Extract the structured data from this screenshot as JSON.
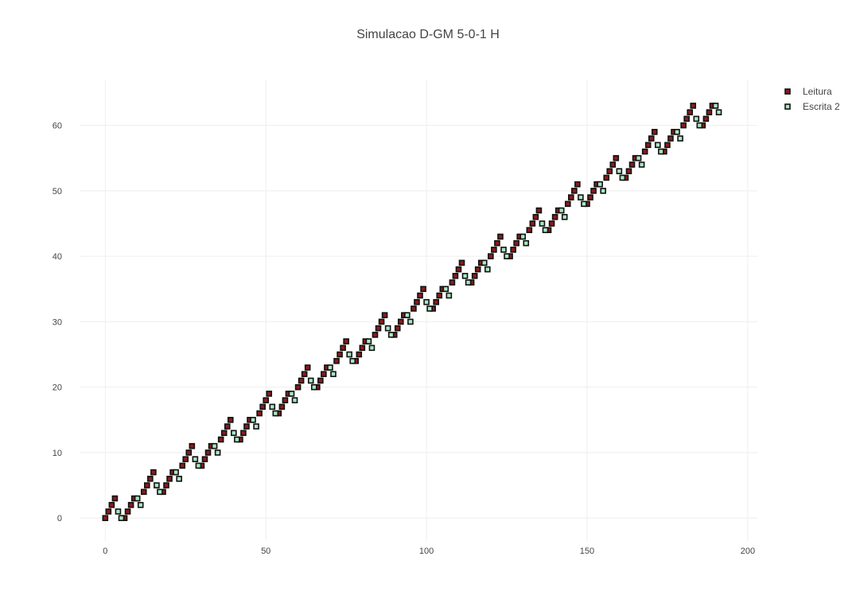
{
  "chart_data": {
    "type": "scatter",
    "title": "Simulacao D-GM 5-0-1 H",
    "xlabel": "",
    "ylabel": "",
    "xlim": [
      -8,
      203
    ],
    "ylim": [
      -3.5,
      67
    ],
    "x_ticks": [
      0,
      50,
      100,
      150,
      200
    ],
    "y_ticks": [
      0,
      10,
      20,
      30,
      40,
      50,
      60
    ],
    "grid": true,
    "legend_position": "top-right",
    "series": [
      {
        "name": "Leitura",
        "color": "#8b1a1a",
        "marker": "square-filled",
        "points": [
          [
            0,
            0
          ],
          [
            1,
            1
          ],
          [
            2,
            2
          ],
          [
            3,
            3
          ],
          [
            6,
            0
          ],
          [
            7,
            1
          ],
          [
            8,
            2
          ],
          [
            9,
            3
          ],
          [
            12,
            4
          ],
          [
            13,
            5
          ],
          [
            14,
            6
          ],
          [
            15,
            7
          ],
          [
            18,
            4
          ],
          [
            19,
            5
          ],
          [
            20,
            6
          ],
          [
            21,
            7
          ],
          [
            24,
            8
          ],
          [
            25,
            9
          ],
          [
            26,
            10
          ],
          [
            27,
            11
          ],
          [
            30,
            8
          ],
          [
            31,
            9
          ],
          [
            32,
            10
          ],
          [
            33,
            11
          ],
          [
            36,
            12
          ],
          [
            37,
            13
          ],
          [
            38,
            14
          ],
          [
            39,
            15
          ],
          [
            42,
            12
          ],
          [
            43,
            13
          ],
          [
            44,
            14
          ],
          [
            45,
            15
          ],
          [
            48,
            16
          ],
          [
            49,
            17
          ],
          [
            50,
            18
          ],
          [
            51,
            19
          ],
          [
            54,
            16
          ],
          [
            55,
            17
          ],
          [
            56,
            18
          ],
          [
            57,
            19
          ],
          [
            60,
            20
          ],
          [
            61,
            21
          ],
          [
            62,
            22
          ],
          [
            63,
            23
          ],
          [
            66,
            20
          ],
          [
            67,
            21
          ],
          [
            68,
            22
          ],
          [
            69,
            23
          ],
          [
            72,
            24
          ],
          [
            73,
            25
          ],
          [
            74,
            26
          ],
          [
            75,
            27
          ],
          [
            78,
            24
          ],
          [
            79,
            25
          ],
          [
            80,
            26
          ],
          [
            81,
            27
          ],
          [
            84,
            28
          ],
          [
            85,
            29
          ],
          [
            86,
            30
          ],
          [
            87,
            31
          ],
          [
            90,
            28
          ],
          [
            91,
            29
          ],
          [
            92,
            30
          ],
          [
            93,
            31
          ],
          [
            96,
            32
          ],
          [
            97,
            33
          ],
          [
            98,
            34
          ],
          [
            99,
            35
          ],
          [
            102,
            32
          ],
          [
            103,
            33
          ],
          [
            104,
            34
          ],
          [
            105,
            35
          ],
          [
            108,
            36
          ],
          [
            109,
            37
          ],
          [
            110,
            38
          ],
          [
            111,
            39
          ],
          [
            114,
            36
          ],
          [
            115,
            37
          ],
          [
            116,
            38
          ],
          [
            117,
            39
          ],
          [
            120,
            40
          ],
          [
            121,
            41
          ],
          [
            122,
            42
          ],
          [
            123,
            43
          ],
          [
            126,
            40
          ],
          [
            127,
            41
          ],
          [
            128,
            42
          ],
          [
            129,
            43
          ],
          [
            132,
            44
          ],
          [
            133,
            45
          ],
          [
            134,
            46
          ],
          [
            135,
            47
          ],
          [
            138,
            44
          ],
          [
            139,
            45
          ],
          [
            140,
            46
          ],
          [
            141,
            47
          ],
          [
            144,
            48
          ],
          [
            145,
            49
          ],
          [
            146,
            50
          ],
          [
            147,
            51
          ],
          [
            150,
            48
          ],
          [
            151,
            49
          ],
          [
            152,
            50
          ],
          [
            153,
            51
          ],
          [
            156,
            52
          ],
          [
            157,
            53
          ],
          [
            158,
            54
          ],
          [
            159,
            55
          ],
          [
            162,
            52
          ],
          [
            163,
            53
          ],
          [
            164,
            54
          ],
          [
            165,
            55
          ],
          [
            168,
            56
          ],
          [
            169,
            57
          ],
          [
            170,
            58
          ],
          [
            171,
            59
          ],
          [
            174,
            56
          ],
          [
            175,
            57
          ],
          [
            176,
            58
          ],
          [
            177,
            59
          ],
          [
            180,
            60
          ],
          [
            181,
            61
          ],
          [
            182,
            62
          ],
          [
            183,
            63
          ],
          [
            186,
            60
          ],
          [
            187,
            61
          ],
          [
            188,
            62
          ],
          [
            189,
            63
          ]
        ]
      },
      {
        "name": "Escrita 2",
        "color": "#a8e6c0",
        "marker": "square-open",
        "points": [
          [
            4,
            1
          ],
          [
            5,
            0
          ],
          [
            10,
            3
          ],
          [
            11,
            2
          ],
          [
            16,
            5
          ],
          [
            17,
            4
          ],
          [
            22,
            7
          ],
          [
            23,
            6
          ],
          [
            28,
            9
          ],
          [
            29,
            8
          ],
          [
            34,
            11
          ],
          [
            35,
            10
          ],
          [
            40,
            13
          ],
          [
            41,
            12
          ],
          [
            46,
            15
          ],
          [
            47,
            14
          ],
          [
            52,
            17
          ],
          [
            53,
            16
          ],
          [
            58,
            19
          ],
          [
            59,
            18
          ],
          [
            64,
            21
          ],
          [
            65,
            20
          ],
          [
            70,
            23
          ],
          [
            71,
            22
          ],
          [
            76,
            25
          ],
          [
            77,
            24
          ],
          [
            82,
            27
          ],
          [
            83,
            26
          ],
          [
            88,
            29
          ],
          [
            89,
            28
          ],
          [
            94,
            31
          ],
          [
            95,
            30
          ],
          [
            100,
            33
          ],
          [
            101,
            32
          ],
          [
            106,
            35
          ],
          [
            107,
            34
          ],
          [
            112,
            37
          ],
          [
            113,
            36
          ],
          [
            118,
            39
          ],
          [
            119,
            38
          ],
          [
            124,
            41
          ],
          [
            125,
            40
          ],
          [
            130,
            43
          ],
          [
            131,
            42
          ],
          [
            136,
            45
          ],
          [
            137,
            44
          ],
          [
            142,
            47
          ],
          [
            143,
            46
          ],
          [
            148,
            49
          ],
          [
            149,
            48
          ],
          [
            154,
            51
          ],
          [
            155,
            50
          ],
          [
            160,
            53
          ],
          [
            161,
            52
          ],
          [
            166,
            55
          ],
          [
            167,
            54
          ],
          [
            172,
            57
          ],
          [
            173,
            56
          ],
          [
            178,
            59
          ],
          [
            179,
            58
          ],
          [
            184,
            61
          ],
          [
            185,
            60
          ],
          [
            190,
            63
          ],
          [
            191,
            62
          ]
        ]
      }
    ]
  }
}
